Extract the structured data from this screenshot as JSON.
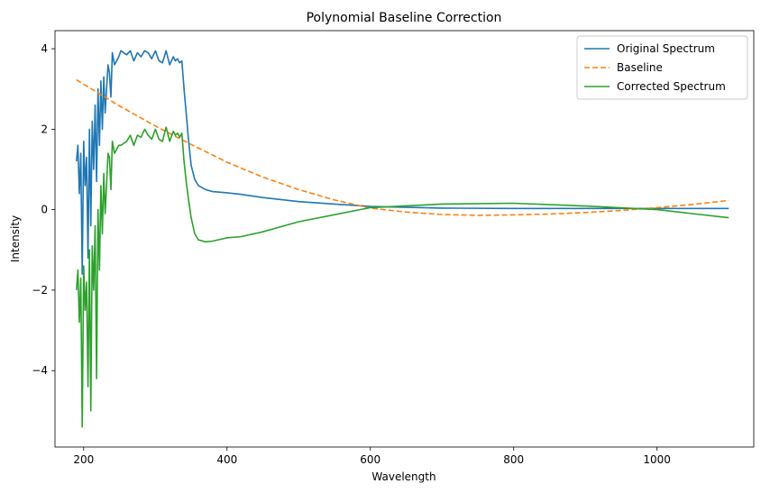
{
  "chart_data": {
    "type": "line",
    "title": "Polynomial Baseline Correction",
    "xlabel": "Wavelength",
    "ylabel": "Intensity",
    "xlim": [
      160,
      1135
    ],
    "ylim": [
      -5.9,
      4.45
    ],
    "xticks": [
      200,
      400,
      600,
      800,
      1000
    ],
    "yticks": [
      -4,
      -2,
      0,
      2,
      4
    ],
    "grid": false,
    "legend_position": "top-right",
    "series": [
      {
        "name": "Original Spectrum",
        "color": "#1f77b4",
        "dash": "solid",
        "x": [
          190,
          192,
          194,
          196,
          198,
          200,
          202,
          204,
          206,
          208,
          210,
          212,
          214,
          216,
          218,
          220,
          222,
          224,
          226,
          228,
          230,
          232,
          234,
          236,
          238,
          240,
          243,
          246,
          249,
          252,
          256,
          260,
          265,
          270,
          275,
          280,
          285,
          290,
          295,
          300,
          305,
          310,
          315,
          320,
          325,
          328,
          331,
          334,
          337,
          340,
          343,
          346,
          350,
          355,
          360,
          370,
          380,
          400,
          420,
          450,
          500,
          600,
          700,
          800,
          900,
          1000,
          1100
        ],
        "y": [
          1.2,
          1.6,
          0.4,
          1.4,
          -1.6,
          1.7,
          0.6,
          1.3,
          -1.2,
          2.0,
          -0.4,
          2.2,
          1.0,
          2.6,
          0.7,
          3.0,
          1.6,
          3.2,
          2.0,
          3.3,
          2.4,
          3.0,
          3.6,
          3.4,
          2.8,
          3.9,
          3.6,
          3.7,
          3.8,
          3.95,
          3.9,
          3.85,
          3.95,
          3.7,
          3.9,
          3.8,
          3.95,
          3.9,
          3.75,
          3.95,
          3.7,
          3.65,
          3.95,
          3.6,
          3.8,
          3.7,
          3.75,
          3.65,
          3.7,
          3.0,
          2.4,
          1.8,
          1.1,
          0.75,
          0.6,
          0.5,
          0.45,
          0.42,
          0.38,
          0.3,
          0.2,
          0.08,
          0.04,
          0.03,
          0.03,
          0.03,
          0.03
        ]
      },
      {
        "name": "Baseline",
        "color": "#ff7f0e",
        "dash": "dashed",
        "x": [
          190,
          200,
          250,
          300,
          350,
          400,
          450,
          500,
          550,
          600,
          650,
          700,
          750,
          800,
          850,
          900,
          950,
          1000,
          1050,
          1100
        ],
        "y": [
          3.23,
          3.12,
          2.58,
          2.08,
          1.62,
          1.18,
          0.81,
          0.5,
          0.24,
          0.04,
          -0.06,
          -0.12,
          -0.14,
          -0.13,
          -0.11,
          -0.07,
          -0.02,
          0.05,
          0.13,
          0.23
        ]
      },
      {
        "name": "Corrected Spectrum",
        "color": "#2ca02c",
        "dash": "solid",
        "x": [
          190,
          192,
          194,
          196,
          198,
          200,
          202,
          204,
          206,
          208,
          210,
          212,
          214,
          216,
          218,
          220,
          222,
          224,
          226,
          228,
          230,
          232,
          234,
          236,
          238,
          240,
          243,
          246,
          249,
          252,
          256,
          260,
          265,
          270,
          275,
          280,
          285,
          290,
          295,
          300,
          305,
          310,
          315,
          320,
          325,
          328,
          331,
          334,
          337,
          340,
          343,
          346,
          350,
          355,
          360,
          370,
          380,
          400,
          420,
          450,
          500,
          600,
          700,
          800,
          900,
          1000,
          1100
        ],
        "y": [
          -2.0,
          -1.5,
          -2.8,
          -1.7,
          -5.4,
          -1.4,
          -2.5,
          -1.8,
          -4.4,
          -1.0,
          -5.0,
          -0.9,
          -2.0,
          -0.4,
          -4.2,
          0.0,
          -1.5,
          0.6,
          -0.6,
          0.9,
          -0.1,
          0.6,
          1.4,
          1.3,
          0.5,
          1.7,
          1.4,
          1.5,
          1.6,
          1.6,
          1.65,
          1.7,
          1.85,
          1.6,
          1.85,
          1.8,
          2.0,
          1.85,
          1.75,
          2.0,
          1.75,
          1.7,
          2.05,
          1.7,
          1.95,
          1.85,
          1.9,
          1.8,
          1.9,
          1.2,
          0.7,
          0.3,
          -0.2,
          -0.6,
          -0.75,
          -0.8,
          -0.78,
          -0.7,
          -0.67,
          -0.55,
          -0.3,
          0.05,
          0.14,
          0.16,
          0.09,
          0.0,
          -0.2
        ]
      }
    ]
  }
}
